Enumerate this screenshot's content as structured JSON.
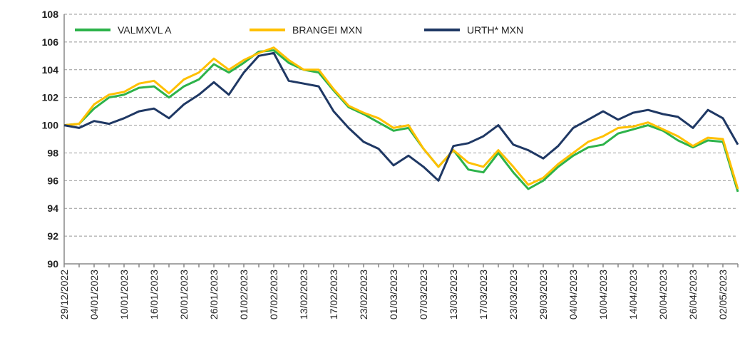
{
  "chart_data": {
    "type": "line",
    "categories": [
      "29/12/2022",
      null,
      "04/01/2023",
      null,
      "10/01/2023",
      null,
      "16/01/2023",
      null,
      "20/01/2023",
      null,
      "26/01/2023",
      null,
      "01/02/2023",
      null,
      "07/02/2023",
      null,
      "13/02/2023",
      null,
      "17/02/2023",
      null,
      "23/02/2023",
      null,
      "01/03/2023",
      null,
      "07/03/2023",
      null,
      "13/03/2023",
      null,
      "17/03/2023",
      null,
      "23/03/2023",
      null,
      "29/03/2023",
      null,
      "04/04/2023",
      null,
      "10/04/2023",
      null,
      "14/04/2023",
      null,
      "20/04/2023",
      null,
      "26/04/2023",
      null,
      "02/05/2023",
      null
    ],
    "series": [
      {
        "name": "VALMXVL A",
        "color": "#2db34a",
        "values": [
          100,
          100.1,
          101.2,
          102,
          102.2,
          102.7,
          102.8,
          102,
          102.8,
          103.3,
          104.4,
          103.8,
          104.5,
          105.3,
          105.4,
          104.5,
          104,
          103.8,
          102.5,
          101.3,
          100.8,
          100.2,
          99.6,
          99.8,
          98.3,
          97,
          98.2,
          96.8,
          96.6,
          98,
          96.6,
          95.4,
          96,
          97,
          97.8,
          98.4,
          98.6,
          99.4,
          99.7,
          100,
          99.6,
          98.9,
          98.4,
          98.9,
          98.8,
          95.2
        ]
      },
      {
        "name": "BRANGEI MXN",
        "color": "#ffc000",
        "values": [
          100,
          100.1,
          101.5,
          102.2,
          102.4,
          103,
          103.2,
          102.3,
          103.3,
          103.8,
          104.8,
          104,
          104.7,
          105.2,
          105.6,
          104.7,
          104,
          104,
          102.6,
          101.4,
          100.9,
          100.5,
          99.8,
          100,
          98.3,
          97,
          98.2,
          97.3,
          97,
          98.2,
          97,
          95.7,
          96.2,
          97.2,
          98,
          98.8,
          99.2,
          99.8,
          99.9,
          100.2,
          99.7,
          99.2,
          98.5,
          99.1,
          99,
          95.4
        ]
      },
      {
        "name": "URTH* MXN",
        "color": "#1f3864",
        "values": [
          100,
          99.8,
          100.3,
          100.1,
          100.5,
          101,
          101.2,
          100.5,
          101.5,
          102.2,
          103.1,
          102.2,
          103.8,
          105,
          105.2,
          103.2,
          103,
          102.8,
          101,
          99.8,
          98.8,
          98.3,
          97.1,
          97.8,
          97,
          96,
          98.5,
          98.7,
          99.2,
          100,
          98.6,
          98.2,
          97.6,
          98.5,
          99.8,
          100.4,
          101,
          100.4,
          100.9,
          101.1,
          100.8,
          100.6,
          99.8,
          101.1,
          100.5,
          98.6
        ]
      }
    ],
    "ylim": [
      90,
      108
    ],
    "yticks": [
      90,
      92,
      94,
      96,
      98,
      100,
      102,
      104,
      106,
      108
    ],
    "grid": true,
    "legend": "upper left"
  }
}
